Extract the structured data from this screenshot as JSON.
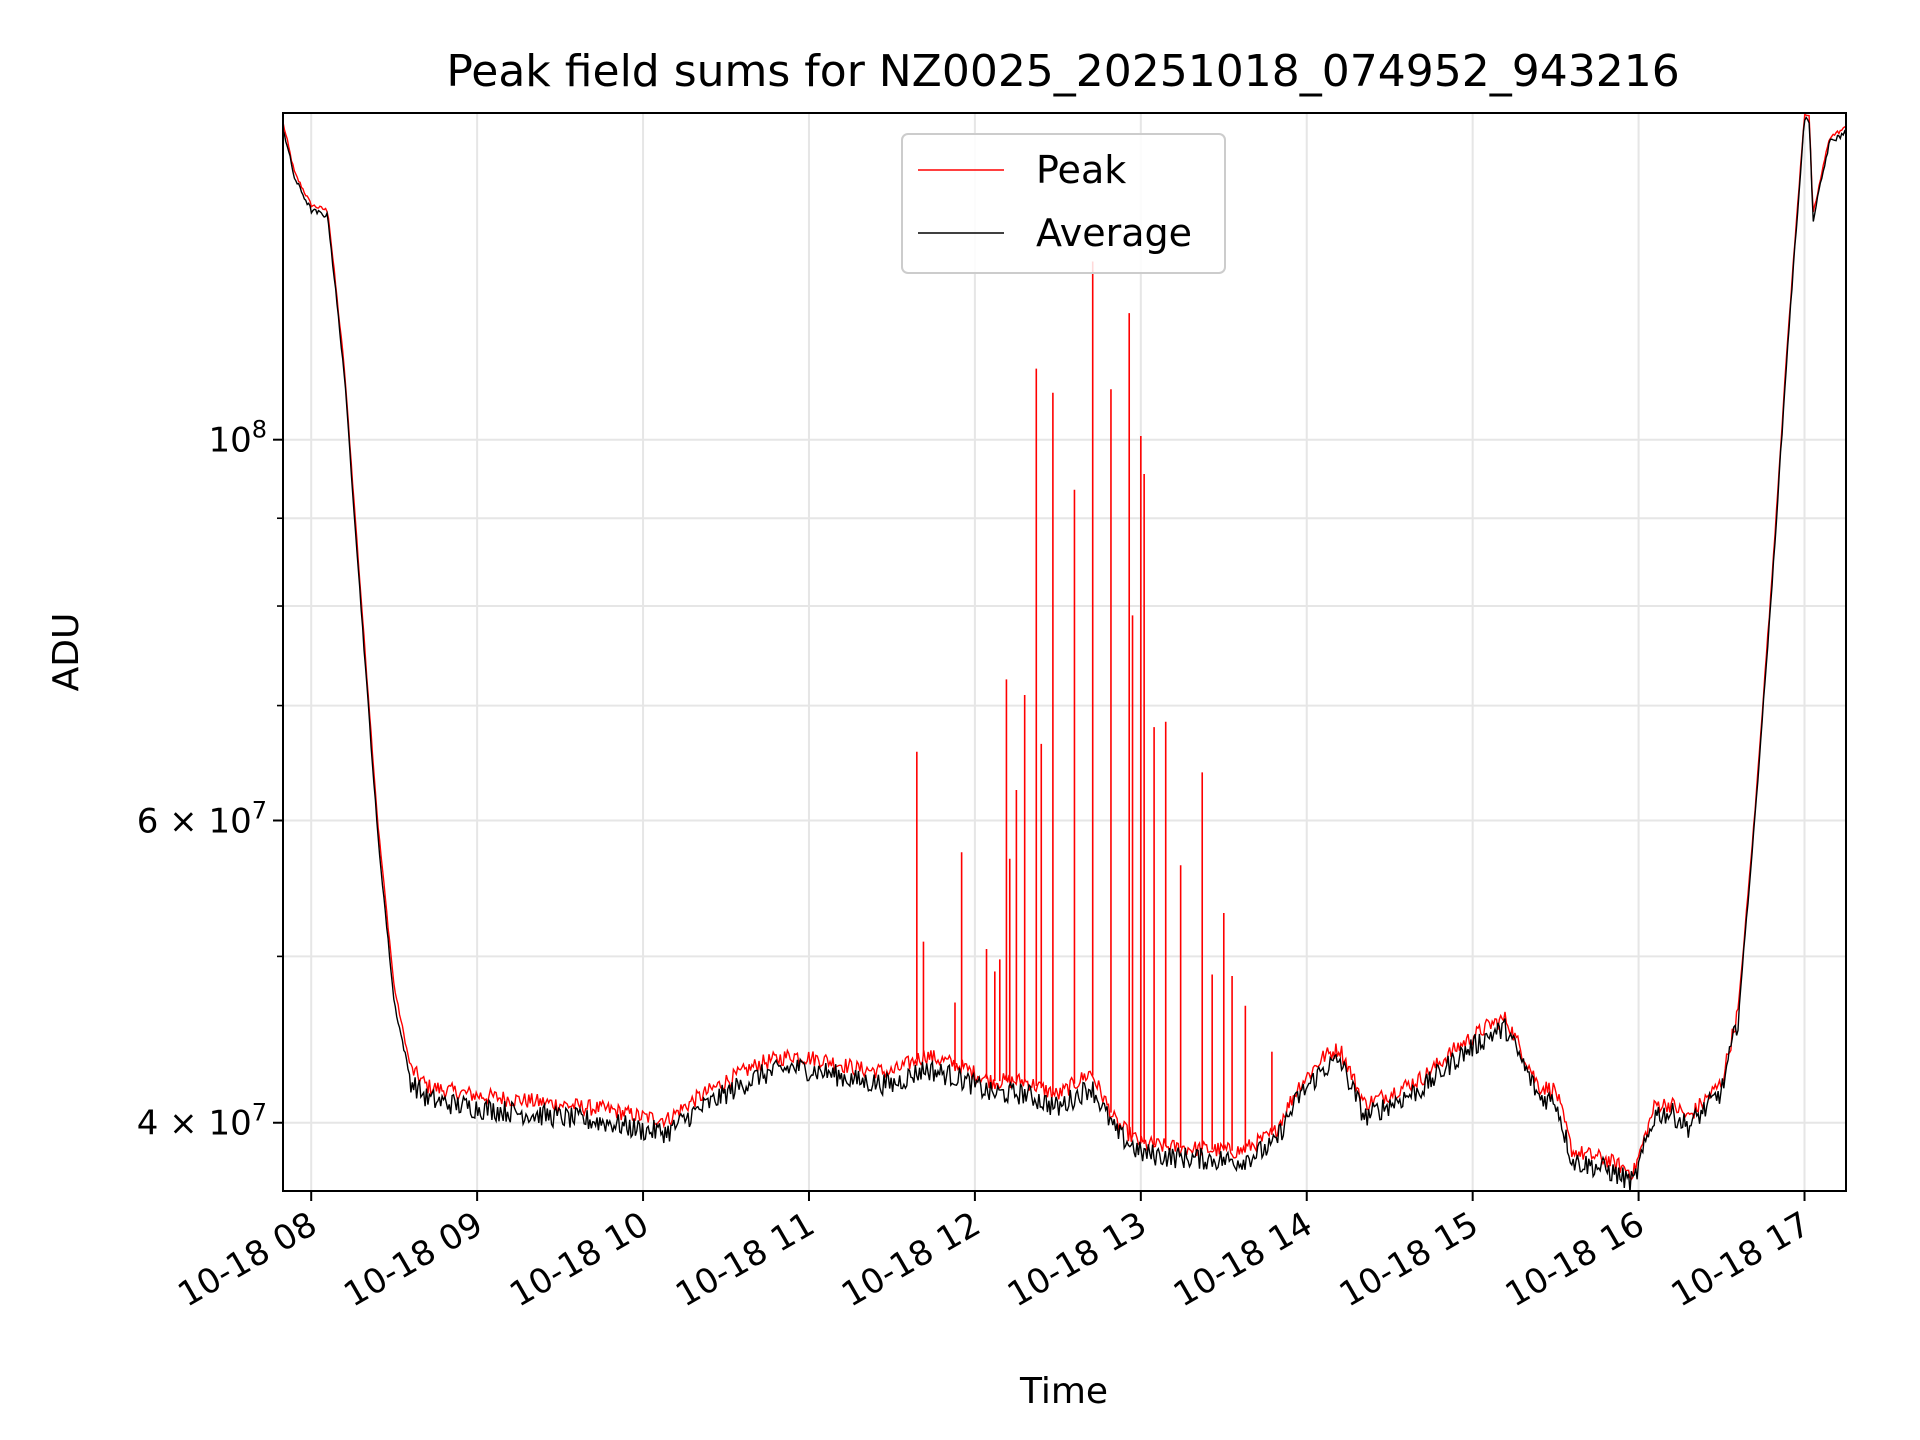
{
  "chart_data": {
    "type": "line",
    "title": "Peak field sums for NZ0025_20251018_074952_943216",
    "xlabel": "Time",
    "ylabel": "ADU",
    "yscale": "log",
    "grid": true,
    "legend_position": "top-center",
    "xlim_hours": [
      7.83,
      17.25
    ],
    "ylim": [
      36500000,
      155000000
    ],
    "x_ticks": [
      {
        "value": 8,
        "label": "10-18 08"
      },
      {
        "value": 9,
        "label": "10-18 09"
      },
      {
        "value": 10,
        "label": "10-18 10"
      },
      {
        "value": 11,
        "label": "10-18 11"
      },
      {
        "value": 12,
        "label": "10-18 12"
      },
      {
        "value": 13,
        "label": "10-18 13"
      },
      {
        "value": 14,
        "label": "10-18 14"
      },
      {
        "value": 15,
        "label": "10-18 15"
      },
      {
        "value": 16,
        "label": "10-18 16"
      },
      {
        "value": 17,
        "label": "10-18 17"
      }
    ],
    "y_major_ticks": [
      {
        "value": 100000000,
        "base": "10",
        "exp": "8"
      },
      {
        "value": 60000000,
        "base": "6 × 10",
        "exp": "7"
      },
      {
        "value": 40000000,
        "base": "4 × 10",
        "exp": "7"
      }
    ],
    "y_minor_ticks": [
      50000000,
      70000000,
      80000000,
      90000000
    ],
    "series": [
      {
        "name": "Peak",
        "color": "#ff0000",
        "x_hours": [
          7.83,
          7.9,
          8.0,
          8.1,
          8.2,
          8.3,
          8.4,
          8.5,
          8.6,
          8.7,
          8.8,
          9.0,
          9.2,
          9.4,
          9.6,
          9.8,
          10.0,
          10.15,
          10.3,
          10.5,
          10.7,
          10.9,
          11.1,
          11.3,
          11.5,
          11.7,
          11.9,
          12.1,
          12.3,
          12.5,
          12.7,
          12.85,
          13.0,
          13.2,
          13.4,
          13.6,
          13.8,
          13.95,
          14.1,
          14.2,
          14.35,
          14.5,
          14.7,
          14.9,
          15.1,
          15.2,
          15.4,
          15.5,
          15.6,
          15.8,
          15.97,
          16.1,
          16.2,
          16.3,
          16.5,
          16.6,
          16.7,
          16.8,
          16.9,
          17.0,
          17.03,
          17.05,
          17.15,
          17.25
        ],
        "values": [
          153000000,
          143000000,
          137000000,
          136000000,
          110000000,
          81000000,
          60000000,
          48000000,
          43000000,
          42000000,
          41800000,
          41500000,
          41300000,
          41100000,
          40900000,
          40700000,
          40300000,
          40200000,
          41200000,
          42300000,
          43300000,
          43800000,
          43500000,
          43000000,
          42800000,
          43800000,
          43200000,
          42300000,
          42300000,
          41500000,
          42800000,
          40000000,
          38900000,
          38700000,
          38600000,
          38500000,
          39400000,
          42000000,
          43700000,
          44200000,
          41000000,
          41600000,
          42500000,
          44200000,
          45600000,
          46000000,
          42000000,
          41800000,
          38500000,
          38100000,
          37400000,
          41000000,
          41000000,
          40300000,
          42200000,
          46500000,
          60500000,
          82000000,
          115000000,
          155000000,
          154000000,
          135000000,
          150000000,
          152000000
        ]
      },
      {
        "name": "Average",
        "color": "#000000",
        "x_hours": [
          7.83,
          7.9,
          8.0,
          8.1,
          8.2,
          8.3,
          8.4,
          8.5,
          8.6,
          8.7,
          8.8,
          9.0,
          9.2,
          9.4,
          9.6,
          9.8,
          10.0,
          10.15,
          10.3,
          10.5,
          10.7,
          10.9,
          11.1,
          11.3,
          11.5,
          11.7,
          11.9,
          12.1,
          12.3,
          12.5,
          12.7,
          12.85,
          13.0,
          13.2,
          13.4,
          13.6,
          13.8,
          13.95,
          14.1,
          14.2,
          14.35,
          14.5,
          14.7,
          14.9,
          15.1,
          15.2,
          15.4,
          15.5,
          15.6,
          15.8,
          15.97,
          16.1,
          16.2,
          16.3,
          16.5,
          16.6,
          16.7,
          16.8,
          16.9,
          17.0,
          17.03,
          17.05,
          17.15,
          17.25
        ],
        "values": [
          152000000,
          142000000,
          136000000,
          135000000,
          109000000,
          80000000,
          59000000,
          47000000,
          42300000,
          41300000,
          41100000,
          40800000,
          40600000,
          40400000,
          40200000,
          40000000,
          39600000,
          39500000,
          40500000,
          41600000,
          42600000,
          43100000,
          42800000,
          42300000,
          42100000,
          43000000,
          42500000,
          41600000,
          41600000,
          40800000,
          42000000,
          39500000,
          38400000,
          38200000,
          38100000,
          38000000,
          38800000,
          41400000,
          43000000,
          43500000,
          40300000,
          41000000,
          41900000,
          43600000,
          45000000,
          45400000,
          41400000,
          41200000,
          38000000,
          37600000,
          36900000,
          40500000,
          40500000,
          39800000,
          41700000,
          46000000,
          60000000,
          81000000,
          114000000,
          154000000,
          153000000,
          134000000,
          149000000,
          151000000
        ]
      }
    ],
    "peak_spikes": [
      {
        "x_hours": 11.65,
        "value": 65800000
      },
      {
        "x_hours": 11.69,
        "value": 51000000
      },
      {
        "x_hours": 11.88,
        "value": 47000000
      },
      {
        "x_hours": 11.92,
        "value": 57500000
      },
      {
        "x_hours": 12.07,
        "value": 50500000
      },
      {
        "x_hours": 12.12,
        "value": 49000000
      },
      {
        "x_hours": 12.15,
        "value": 49800000
      },
      {
        "x_hours": 12.19,
        "value": 72500000
      },
      {
        "x_hours": 12.21,
        "value": 57000000
      },
      {
        "x_hours": 12.25,
        "value": 62500000
      },
      {
        "x_hours": 12.3,
        "value": 71000000
      },
      {
        "x_hours": 12.37,
        "value": 110000000
      },
      {
        "x_hours": 12.4,
        "value": 66500000
      },
      {
        "x_hours": 12.47,
        "value": 106500000
      },
      {
        "x_hours": 12.6,
        "value": 93500000
      },
      {
        "x_hours": 12.71,
        "value": 127000000
      },
      {
        "x_hours": 12.82,
        "value": 107000000
      },
      {
        "x_hours": 12.93,
        "value": 118500000
      },
      {
        "x_hours": 12.95,
        "value": 79000000
      },
      {
        "x_hours": 13.0,
        "value": 100500000
      },
      {
        "x_hours": 13.02,
        "value": 95500000
      },
      {
        "x_hours": 13.08,
        "value": 68000000
      },
      {
        "x_hours": 13.15,
        "value": 68500000
      },
      {
        "x_hours": 13.24,
        "value": 56500000
      },
      {
        "x_hours": 13.37,
        "value": 64000000
      },
      {
        "x_hours": 13.43,
        "value": 48800000
      },
      {
        "x_hours": 13.5,
        "value": 53000000
      },
      {
        "x_hours": 13.55,
        "value": 48700000
      },
      {
        "x_hours": 13.63,
        "value": 46800000
      },
      {
        "x_hours": 13.79,
        "value": 44000000
      }
    ]
  }
}
